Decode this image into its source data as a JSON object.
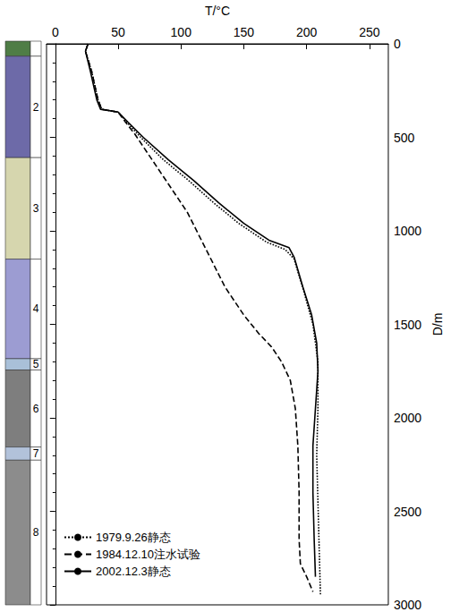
{
  "chart_data": {
    "type": "line",
    "x_label": "T/°C",
    "y_label": "D/m",
    "xlim": [
      -7,
      265
    ],
    "xticks": [
      0,
      50,
      100,
      150,
      200,
      250
    ],
    "ylim": [
      3000,
      0
    ],
    "yticks": [
      0,
      500,
      1000,
      1500,
      2000,
      2500,
      3000
    ],
    "grid": false,
    "legend": "bottom-left",
    "series": [
      {
        "name": "1979.9.26静态",
        "color": "#000000",
        "line_style": "dotted",
        "x": [
          26,
          24,
          29,
          34,
          37,
          50,
          57,
          68,
          86,
          106,
          126,
          146,
          168,
          183,
          190,
          198,
          205,
          209,
          209,
          208,
          209,
          210,
          211
        ],
        "values": [
          0,
          40,
          150,
          300,
          350,
          365,
          420,
          500,
          620,
          730,
          850,
          960,
          1060,
          1100,
          1150,
          1330,
          1500,
          1700,
          1950,
          2200,
          2450,
          2700,
          2950
        ]
      },
      {
        "name": "1984.12.10注水试验",
        "color": "#000000",
        "line_style": "dashed",
        "x": [
          26,
          24,
          29,
          34,
          37,
          50,
          56,
          63,
          75,
          90,
          105,
          120,
          135,
          150,
          162,
          172,
          180,
          187,
          191,
          193,
          194,
          194,
          195,
          200,
          205
        ],
        "values": [
          0,
          40,
          150,
          300,
          350,
          365,
          420,
          480,
          600,
          750,
          900,
          1100,
          1300,
          1450,
          1550,
          1620,
          1700,
          1800,
          1950,
          2150,
          2400,
          2650,
          2780,
          2850,
          2930
        ]
      },
      {
        "name": "2002.12.3静态",
        "color": "#000000",
        "line_style": "solid",
        "x": [
          26,
          24,
          28,
          33,
          36,
          50,
          58,
          70,
          90,
          110,
          130,
          150,
          170,
          186,
          190,
          197,
          204,
          208,
          209,
          207,
          205,
          205,
          206,
          207
        ],
        "values": [
          0,
          40,
          150,
          300,
          350,
          365,
          420,
          500,
          620,
          730,
          850,
          960,
          1050,
          1090,
          1140,
          1300,
          1450,
          1600,
          1750,
          1950,
          2150,
          2400,
          2650,
          2850
        ]
      }
    ],
    "strata": [
      {
        "label": null,
        "top": 0,
        "bottom": 80,
        "color": "#4f7d46"
      },
      {
        "label": "2",
        "top": 80,
        "bottom": 620,
        "color": "#6d6aa8"
      },
      {
        "label": "3",
        "top": 620,
        "bottom": 1160,
        "color": "#d6d6ae"
      },
      {
        "label": "4",
        "top": 1160,
        "bottom": 1690,
        "color": "#9c9cd2"
      },
      {
        "label": "5",
        "top": 1690,
        "bottom": 1750,
        "color": "#a9c0d8"
      },
      {
        "label": "6",
        "top": 1750,
        "bottom": 2160,
        "color": "#7e7e7e"
      },
      {
        "label": "7",
        "top": 2160,
        "bottom": 2230,
        "color": "#b2c2da"
      },
      {
        "label": "8",
        "top": 2230,
        "bottom": 3000,
        "color": "#8c8c8c"
      }
    ]
  }
}
